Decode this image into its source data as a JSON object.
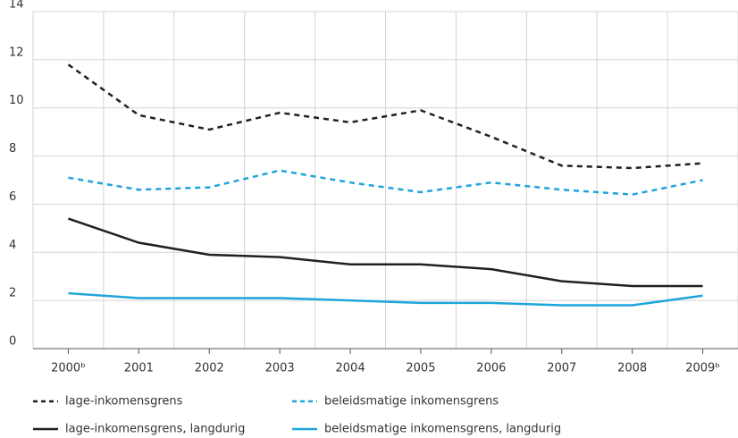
{
  "chart_data": {
    "type": "line",
    "categories": [
      "2000ᵇ",
      "2001",
      "2002",
      "2003",
      "2004",
      "2005",
      "2006",
      "2007",
      "2008",
      "2009ᵇ"
    ],
    "series": [
      {
        "name": "lage-inkomensgrens",
        "color": "#231f20",
        "dashed": true,
        "values": [
          11.8,
          9.7,
          9.1,
          9.8,
          9.4,
          9.9,
          8.8,
          7.6,
          7.5,
          7.7
        ]
      },
      {
        "name": "beleidsmatige inkomensgrens",
        "color": "#1ea4dc",
        "dashed": true,
        "values": [
          7.1,
          6.6,
          6.7,
          7.4,
          6.9,
          6.5,
          6.9,
          6.6,
          6.4,
          7.0
        ]
      },
      {
        "name": "lage-inkomensgrens, langdurig",
        "color": "#231f20",
        "dashed": false,
        "values": [
          5.4,
          4.4,
          3.9,
          3.8,
          3.5,
          3.5,
          3.3,
          2.8,
          2.6,
          2.6
        ]
      },
      {
        "name": "beleidsmatige inkomensgrens, langdurig",
        "color": "#1ea4dc",
        "dashed": false,
        "values": [
          2.3,
          2.1,
          2.1,
          2.1,
          2.0,
          1.9,
          1.9,
          1.8,
          1.8,
          2.2
        ]
      }
    ],
    "ylim": [
      0,
      14
    ],
    "yticks": [
      0,
      2,
      4,
      6,
      8,
      10,
      12,
      14
    ],
    "grid": true,
    "legend": "bottom"
  }
}
